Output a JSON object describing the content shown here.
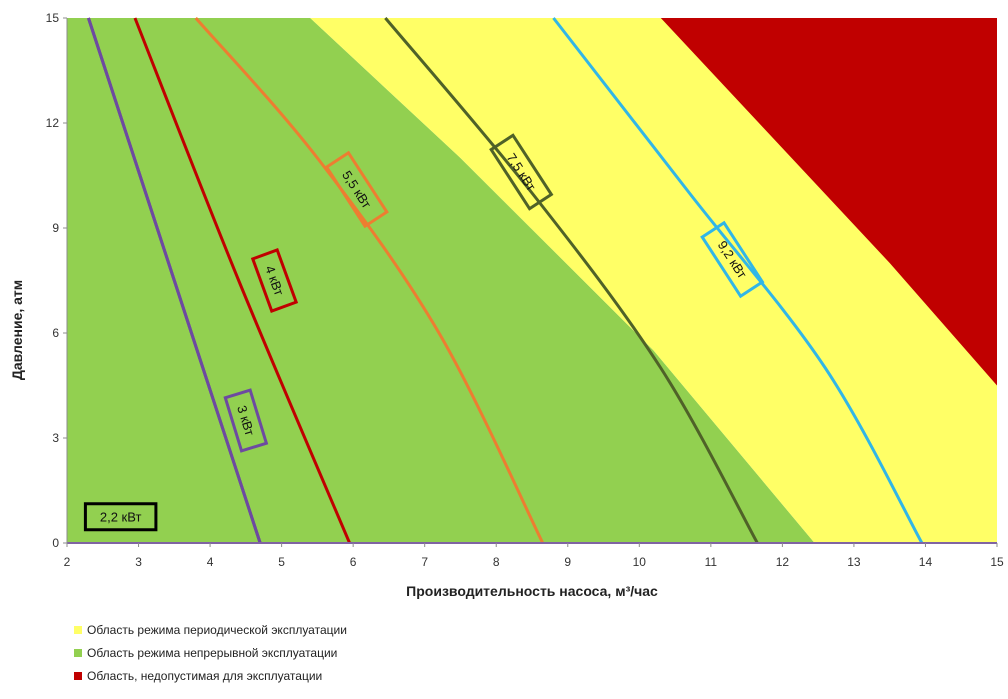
{
  "chart_data": {
    "type": "area",
    "xlabel": "Производительность насоса, м³/час",
    "ylabel": "Давление, атм",
    "xlim": [
      2,
      15
    ],
    "ylim": [
      0,
      15
    ],
    "x_ticks": [
      2,
      3,
      4,
      5,
      6,
      7,
      8,
      9,
      10,
      11,
      12,
      13,
      14,
      15
    ],
    "y_ticks": [
      0,
      3,
      6,
      9,
      12,
      15
    ],
    "regions": [
      {
        "name": "Область режима непрерывной эксплуатации",
        "color": "#92d050",
        "boundary": [
          [
            2,
            0
          ],
          [
            12.45,
            0
          ],
          [
            10.2,
            5.5
          ],
          [
            7.5,
            11
          ],
          [
            5.4,
            15
          ],
          [
            2,
            15
          ]
        ]
      },
      {
        "name": "Область режима периодической эксплуатации",
        "color": "#ffff66",
        "boundary": [
          [
            12.45,
            0
          ],
          [
            15,
            0
          ],
          [
            15,
            15
          ],
          [
            5.4,
            15
          ],
          [
            7.5,
            11
          ],
          [
            10.2,
            5.5
          ]
        ]
      },
      {
        "name": "Область, недопустимая для эксплуатации",
        "color": "#c00000",
        "boundary": [
          [
            15,
            4.5
          ],
          [
            15,
            15
          ],
          [
            10.3,
            15
          ],
          [
            13.5,
            8
          ]
        ]
      }
    ],
    "series": [
      {
        "name": "2,2 кВт",
        "color": "#7030a0",
        "x": [
          2.3,
          3.5,
          4.7
        ],
        "y": [
          15,
          7.5,
          0
        ]
      },
      {
        "name": "3 кВт",
        "color": "#6d4aa1",
        "x": [
          2.3,
          3.5,
          4.7
        ],
        "y": [
          15,
          7.5,
          0
        ]
      },
      {
        "name": "4 кВт",
        "color": "#c00000",
        "x": [
          2.95,
          4.4,
          5.95
        ],
        "y": [
          15,
          7.5,
          0
        ]
      },
      {
        "name": "5,5 кВт",
        "color": "#ed7d31",
        "x": [
          3.8,
          5.5,
          7.2,
          8.65
        ],
        "y": [
          15,
          11,
          6,
          0
        ]
      },
      {
        "name": "7,5 кВт",
        "color": "#4f6228",
        "x": [
          6.45,
          8.5,
          10.3,
          11.65
        ],
        "y": [
          15,
          10,
          5,
          0
        ]
      },
      {
        "name": "9,2 кВт",
        "color": "#31b6e7",
        "x": [
          8.8,
          10.7,
          12.6,
          13.95
        ],
        "y": [
          15,
          10,
          5,
          0
        ]
      }
    ],
    "annotations": [
      {
        "text": "2,2 кВт",
        "x": 2.75,
        "y": 0.75,
        "angle": 0,
        "color": "#000000"
      },
      {
        "text": "3 кВт",
        "x": 4.5,
        "y": 3.5,
        "angle": 73,
        "color": "#6d4aa1"
      },
      {
        "text": "4 кВт",
        "x": 4.9,
        "y": 7.5,
        "angle": 70,
        "color": "#c00000"
      },
      {
        "text": "5,5 кВт",
        "x": 6.05,
        "y": 10.1,
        "angle": 57,
        "color": "#ed7d31"
      },
      {
        "text": "7,5 кВт",
        "x": 8.35,
        "y": 10.6,
        "angle": 57,
        "color": "#4f6228"
      },
      {
        "text": "9,2 кВт",
        "x": 11.3,
        "y": 8.1,
        "angle": 57,
        "color": "#31b6e7"
      }
    ],
    "legend": {
      "placement": "bottom-left"
    }
  }
}
